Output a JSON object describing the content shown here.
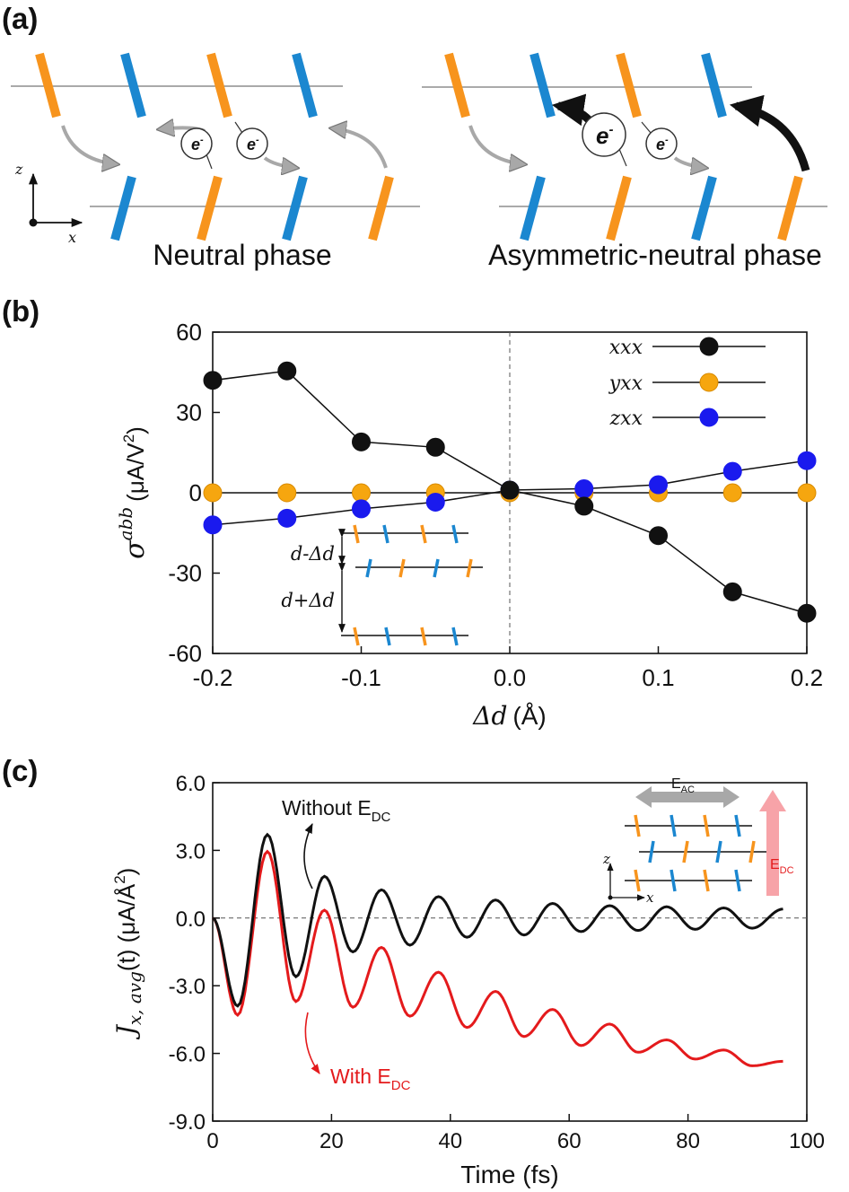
{
  "panel_labels": {
    "a": "(a)",
    "b": "(b)",
    "c": "(c)"
  },
  "colors": {
    "orange": "#f7941d",
    "blue": "#1b87d0",
    "black": "#111111",
    "red": "#e41a1c",
    "dot_yellow": "#f6a60f",
    "dot_blue": "#1a1aee",
    "arrow_gray": "#a0a0a0",
    "arrow_pink": "#f7a3a8"
  },
  "panel_a": {
    "left_caption": "Neutral phase",
    "right_caption": "Asymmetric-neutral phase",
    "electron": "e",
    "electron_sup": "-",
    "axis_z": "z",
    "axis_x": "x"
  },
  "panel_b": {
    "inset_top_label": "d-Δd",
    "inset_bottom_label": "d+Δd"
  },
  "panel_c": {
    "annot_without": "Without E",
    "annot_with": "With E",
    "annot_sub": "DC",
    "inset_eac": "E",
    "inset_eac_sub": "AC",
    "inset_edc": "E",
    "inset_edc_sub": "DC",
    "inset_axis_z": "z",
    "inset_axis_x": "x"
  },
  "chart_data": [
    {
      "type": "line",
      "title": "",
      "xlabel": "Δd (Å)",
      "ylabel": "σabb (μA/V²)",
      "ylabel_main": "σ",
      "ylabel_sup": "abb",
      "ylabel_units": "(μA/V",
      "ylabel_units_sup": "2",
      "ylabel_units_close": ")",
      "xlabel_var": "Δd",
      "xlabel_units": "(Å)",
      "xlim": [
        -0.2,
        0.2
      ],
      "ylim": [
        -60,
        60
      ],
      "xticks": [
        "-0.2",
        "-0.1",
        "0.0",
        "0.1",
        "0.2"
      ],
      "yticks": [
        "60",
        "30",
        "0",
        "-30",
        "-60"
      ],
      "x": [
        -0.2,
        -0.15,
        -0.1,
        -0.05,
        0.0,
        0.05,
        0.1,
        0.15,
        0.2
      ],
      "series": [
        {
          "name": "xxx",
          "values": [
            42,
            45.5,
            19,
            17,
            1,
            -5,
            -16,
            -37,
            -45
          ]
        },
        {
          "name": "yxx",
          "values": [
            0,
            0,
            0,
            0,
            0,
            0,
            0,
            0,
            0
          ]
        },
        {
          "name": "zxx",
          "values": [
            -12,
            -9.5,
            -6,
            -3.5,
            1,
            1.5,
            3,
            8,
            12
          ]
        }
      ],
      "legend": "top-right"
    },
    {
      "type": "line",
      "title": "",
      "xlabel": "Time (fs)",
      "ylabel": "Jx,avg(t) (μA/Å²)",
      "ylabel_main": "J",
      "ylabel_sub": "x, avg",
      "ylabel_tail": "(t) (μA/Å",
      "ylabel_units_sup": "2",
      "ylabel_units_close": ")",
      "xlim": [
        0,
        100
      ],
      "ylim": [
        -9,
        6
      ],
      "xticks": [
        "0",
        "20",
        "40",
        "60",
        "80",
        "100"
      ],
      "yticks": [
        "6.0",
        "3.0",
        "0.0",
        "-3.0",
        "-6.0",
        "-9.0"
      ],
      "series": [
        {
          "name": "Without EDC",
          "period_fs": 9.6,
          "x": [
            0,
            4.2,
            9.2,
            14.0,
            18.8,
            23.6,
            28.4,
            33.2,
            38.0,
            42.8,
            47.6,
            52.4,
            57.2,
            62.0,
            66.8,
            71.6,
            76.4,
            81.2,
            86.0,
            90.8,
            96.0
          ],
          "values": [
            0,
            -3.9,
            3.7,
            -2.6,
            1.85,
            -1.5,
            1.25,
            -1.2,
            0.95,
            -0.85,
            0.8,
            -0.75,
            0.65,
            -0.6,
            0.55,
            -0.55,
            0.5,
            -0.5,
            0.45,
            -0.45,
            0.4
          ]
        },
        {
          "name": "With EDC",
          "period_fs": 9.6,
          "x": [
            0,
            4.2,
            9.2,
            14.0,
            18.8,
            23.6,
            28.4,
            33.2,
            38.0,
            42.8,
            47.6,
            52.4,
            57.2,
            62.0,
            66.8,
            71.6,
            76.4,
            81.2,
            86.0,
            90.8,
            96.0
          ],
          "values": [
            0,
            -4.3,
            2.95,
            -3.7,
            0.35,
            -3.95,
            -1.3,
            -4.35,
            -2.4,
            -4.85,
            -3.25,
            -5.25,
            -4.05,
            -5.65,
            -4.7,
            -5.95,
            -5.4,
            -6.25,
            -5.85,
            -6.55,
            -6.35
          ]
        }
      ]
    }
  ]
}
